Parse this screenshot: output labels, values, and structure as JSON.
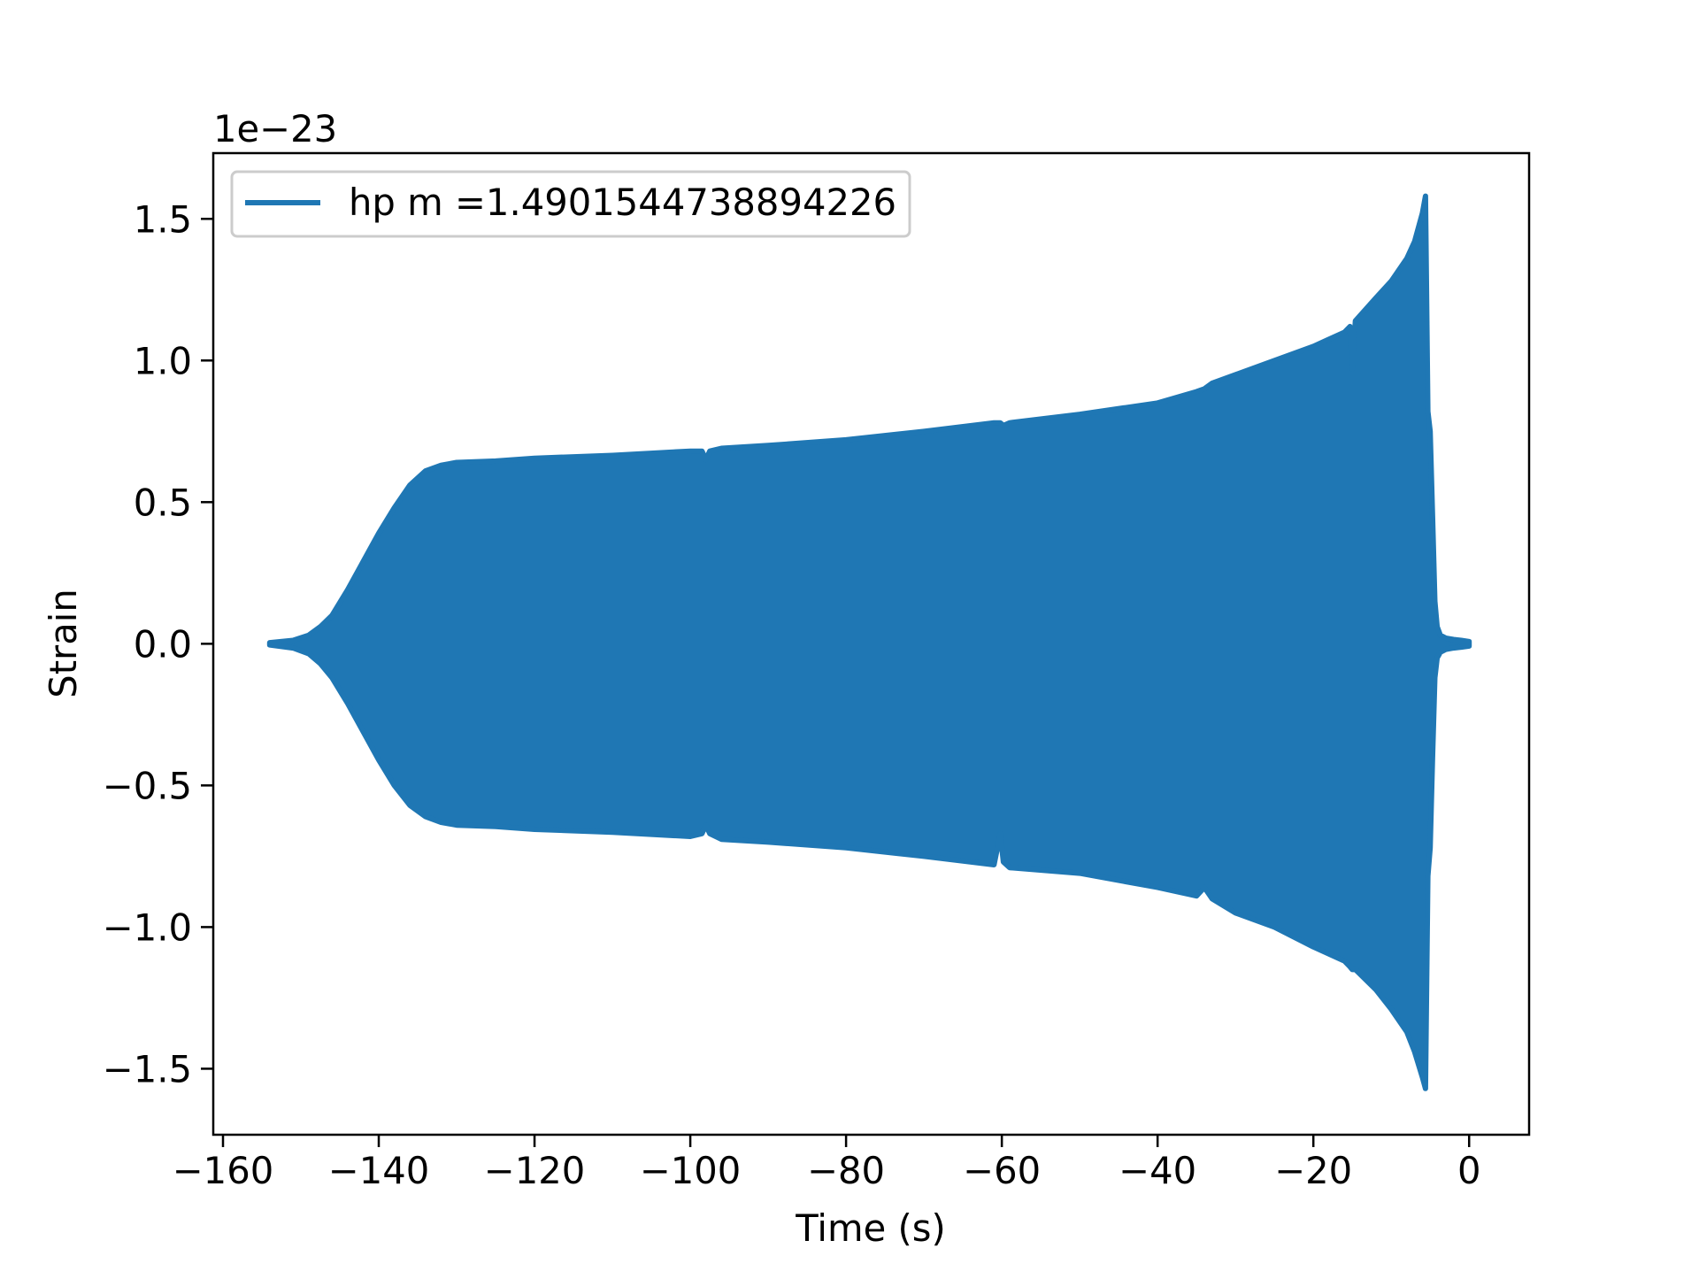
{
  "chart_data": {
    "type": "line",
    "title": "",
    "xlabel": "Time (s)",
    "ylabel": "Strain",
    "y_offset_text": "1e−23",
    "xlim": [
      -161.25,
      7.7
    ],
    "ylim": [
      -1.733,
      1.732
    ],
    "grid": false,
    "legend_position": "top-left",
    "color": "#1f77b4",
    "x_ticks": [
      -160,
      -140,
      -120,
      -100,
      -80,
      -60,
      -40,
      -20,
      0
    ],
    "x_tick_labels": [
      "−160",
      "−140",
      "−120",
      "−100",
      "−80",
      "−60",
      "−40",
      "−20",
      "0"
    ],
    "y_ticks": [
      -1.5,
      -1.0,
      -0.5,
      0.0,
      0.5,
      1.0,
      1.5
    ],
    "y_tick_labels": [
      "−1.5",
      "−1.0",
      "−0.5",
      "0.0",
      "0.5",
      "1.0",
      "1.5"
    ],
    "series": [
      {
        "name": "hp m =1.4901544738894226",
        "envelope_note_units": "strain x 1e-23",
        "x": [
          -154,
          -151,
          -149,
          -147.5,
          -146,
          -144,
          -142,
          -140,
          -138,
          -136,
          -134,
          -132,
          -130,
          -125,
          -120,
          -110,
          -100,
          -98.5,
          -98,
          -97.5,
          -96,
          -90,
          -80,
          -70,
          -61,
          -60.2,
          -59.8,
          -59,
          -50,
          -40,
          -35,
          -34,
          -33,
          -30,
          -25,
          -20,
          -16,
          -15.3,
          -15,
          -14.6,
          -12,
          -10,
          -8,
          -7,
          -6,
          -5.6,
          -5.3,
          -5.0,
          -4.7,
          -4.4,
          -4.1,
          -3.7,
          -3.0,
          -2.0,
          -1.0,
          0
        ],
        "upper": [
          0.004,
          0.012,
          0.03,
          0.06,
          0.1,
          0.19,
          0.29,
          0.39,
          0.48,
          0.56,
          0.61,
          0.63,
          0.64,
          0.645,
          0.655,
          0.665,
          0.68,
          0.68,
          0.65,
          0.68,
          0.69,
          0.7,
          0.72,
          0.75,
          0.78,
          0.78,
          0.77,
          0.78,
          0.81,
          0.85,
          0.89,
          0.9,
          0.92,
          0.95,
          1.0,
          1.05,
          1.1,
          1.12,
          0.97,
          1.14,
          1.22,
          1.28,
          1.36,
          1.42,
          1.52,
          1.58,
          0.82,
          0.75,
          0.45,
          0.15,
          0.06,
          0.03,
          0.02,
          0.015,
          0.012,
          0.008
        ],
        "lower": [
          -0.004,
          -0.015,
          -0.035,
          -0.07,
          -0.12,
          -0.21,
          -0.31,
          -0.41,
          -0.5,
          -0.57,
          -0.61,
          -0.63,
          -0.64,
          -0.645,
          -0.655,
          -0.665,
          -0.68,
          -0.67,
          -0.64,
          -0.67,
          -0.69,
          -0.7,
          -0.72,
          -0.75,
          -0.78,
          -0.67,
          -0.77,
          -0.79,
          -0.81,
          -0.86,
          -0.89,
          -0.86,
          -0.9,
          -0.95,
          -1.0,
          -1.07,
          -1.12,
          -1.14,
          -1.15,
          -1.15,
          -1.22,
          -1.29,
          -1.37,
          -1.44,
          -1.53,
          -1.57,
          -0.82,
          -0.72,
          -0.4,
          -0.12,
          -0.05,
          -0.03,
          -0.02,
          -0.015,
          -0.012,
          -0.008
        ]
      }
    ]
  }
}
